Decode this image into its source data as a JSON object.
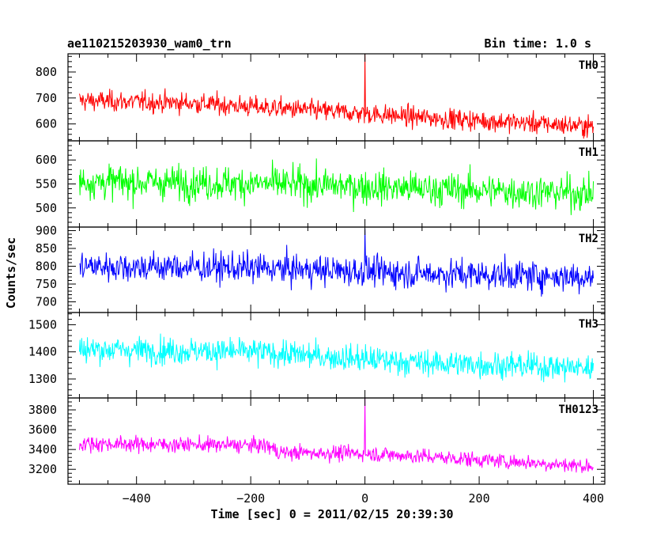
{
  "chart_data": {
    "type": "line",
    "header_left": "ae110215203930_wam0_trn",
    "header_right": "Bin time: 1.0 s",
    "xlabel": "Time [sec] 0 = 2011/02/15 20:39:30",
    "ylabel": "Counts/sec",
    "xlim": [
      -520,
      420
    ],
    "x_ticks": [
      -400,
      -200,
      0,
      200,
      400
    ],
    "x_range": [
      -500,
      400
    ],
    "bin_time": 1.0,
    "panels": [
      {
        "name": "TH0",
        "color": "#ff0000",
        "ylim": [
          535,
          870
        ],
        "y_ticks": [
          600,
          700,
          800
        ],
        "trend": [
          [
            -500,
            690
          ],
          [
            -300,
            680
          ],
          [
            0,
            640
          ],
          [
            100,
            625
          ],
          [
            400,
            590
          ]
        ],
        "noise": 28,
        "spike": {
          "x": 0,
          "y": 870
        }
      },
      {
        "name": "TH1",
        "color": "#00ff00",
        "ylim": [
          460,
          640
        ],
        "y_ticks": [
          500,
          550,
          600
        ],
        "trend": [
          [
            -500,
            555
          ],
          [
            -150,
            550
          ],
          [
            100,
            540
          ],
          [
            400,
            530
          ]
        ],
        "noise": 25,
        "spike": null
      },
      {
        "name": "TH2",
        "color": "#0000ff",
        "ylim": [
          670,
          910
        ],
        "y_ticks": [
          700,
          750,
          800,
          850,
          900
        ],
        "trend": [
          [
            -500,
            800
          ],
          [
            -200,
            795
          ],
          [
            100,
            780
          ],
          [
            400,
            770
          ]
        ],
        "noise": 30,
        "spike": {
          "x": 0,
          "y": 905
        }
      },
      {
        "name": "TH3",
        "color": "#00ffff",
        "ylim": [
          1230,
          1545
        ],
        "y_ticks": [
          1300,
          1400,
          1500
        ],
        "trend": [
          [
            -500,
            1410
          ],
          [
            -200,
            1400
          ],
          [
            100,
            1360
          ],
          [
            400,
            1340
          ]
        ],
        "noise": 35,
        "spike": null
      },
      {
        "name": "TH0123",
        "color": "#ff00ff",
        "ylim": [
          3050,
          3920
        ],
        "y_ticks": [
          3200,
          3400,
          3600,
          3800
        ],
        "trend": [
          [
            -500,
            3460
          ],
          [
            -170,
            3440
          ],
          [
            -150,
            3370
          ],
          [
            0,
            3360
          ],
          [
            100,
            3330
          ],
          [
            400,
            3230
          ]
        ],
        "noise": 55,
        "spike": {
          "x": 0,
          "y": 3920
        }
      }
    ]
  }
}
